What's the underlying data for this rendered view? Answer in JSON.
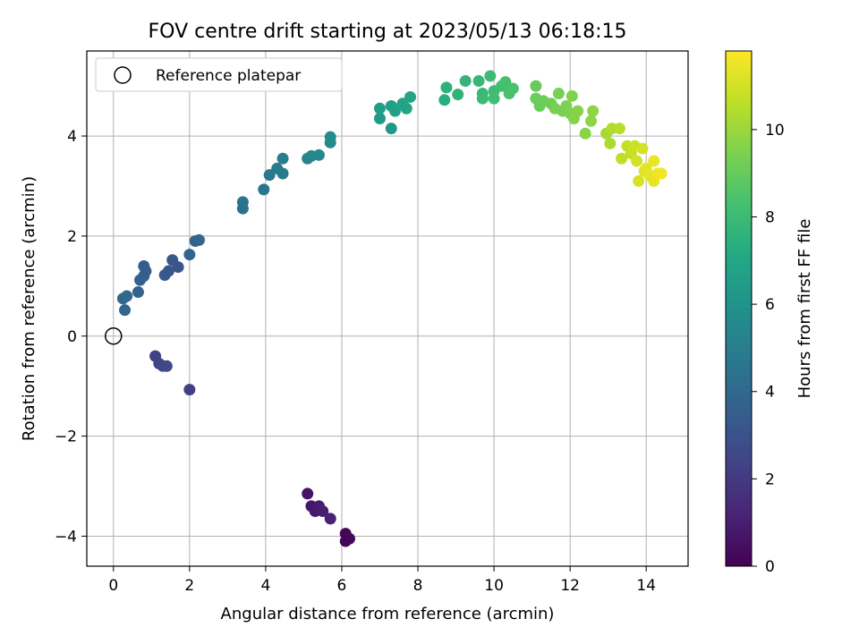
{
  "chart_data": {
    "type": "scatter",
    "title": "FOV centre drift starting at 2023/05/13 06:18:15",
    "xlabel": "Angular distance from reference (arcmin)",
    "ylabel": "Rotation from reference (arcmin)",
    "xlim": [
      -0.7,
      15.1
    ],
    "ylim": [
      -4.6,
      5.7
    ],
    "xticks": [
      0,
      2,
      4,
      6,
      8,
      10,
      12,
      14
    ],
    "yticks": [
      -4,
      -2,
      0,
      2,
      4
    ],
    "xtick_labels": [
      "0",
      "2",
      "4",
      "6",
      "8",
      "10",
      "12",
      "14"
    ],
    "ytick_labels": [
      "−4",
      "−2",
      "0",
      "2",
      "4"
    ],
    "grid": true,
    "legend": {
      "placement": "top-left",
      "entries": [
        "Reference platepar"
      ]
    },
    "reference_point": {
      "x": 0,
      "y": 0
    },
    "colorbar": {
      "label": "Hours from first FF file",
      "colormap": "viridis",
      "range": [
        0,
        11.8
      ],
      "ticks": [
        0,
        2,
        4,
        6,
        8,
        10
      ],
      "tick_labels": [
        "0",
        "2",
        "4",
        "6",
        "8",
        "10"
      ]
    },
    "points": [
      {
        "x": 5.1,
        "y": -3.15,
        "h": 0.6
      },
      {
        "x": 5.2,
        "y": -3.4,
        "h": 0.7
      },
      {
        "x": 5.3,
        "y": -3.5,
        "h": 0.8
      },
      {
        "x": 5.4,
        "y": -3.4,
        "h": 0.9
      },
      {
        "x": 5.5,
        "y": -3.5,
        "h": 1.0
      },
      {
        "x": 5.7,
        "y": -3.65,
        "h": 1.1
      },
      {
        "x": 6.1,
        "y": -3.95,
        "h": 0.2
      },
      {
        "x": 6.2,
        "y": -4.05,
        "h": 0.3
      },
      {
        "x": 6.1,
        "y": -4.1,
        "h": 0.1
      },
      {
        "x": 1.1,
        "y": -0.4,
        "h": 2.3
      },
      {
        "x": 1.2,
        "y": -0.55,
        "h": 2.4
      },
      {
        "x": 1.3,
        "y": -0.6,
        "h": 2.5
      },
      {
        "x": 1.4,
        "y": -0.6,
        "h": 2.6
      },
      {
        "x": 2.0,
        "y": -1.07,
        "h": 2.2
      },
      {
        "x": 0.25,
        "y": 0.75,
        "h": 3.9
      },
      {
        "x": 0.3,
        "y": 0.52,
        "h": 3.8
      },
      {
        "x": 0.35,
        "y": 0.8,
        "h": 3.95
      },
      {
        "x": 0.65,
        "y": 0.88,
        "h": 3.7
      },
      {
        "x": 0.7,
        "y": 1.12,
        "h": 3.6
      },
      {
        "x": 0.8,
        "y": 1.2,
        "h": 3.55
      },
      {
        "x": 0.8,
        "y": 1.4,
        "h": 3.5
      },
      {
        "x": 0.85,
        "y": 1.3,
        "h": 3.45
      },
      {
        "x": 1.35,
        "y": 1.22,
        "h": 3.3
      },
      {
        "x": 1.45,
        "y": 1.3,
        "h": 3.25
      },
      {
        "x": 1.55,
        "y": 1.52,
        "h": 3.2
      },
      {
        "x": 1.7,
        "y": 1.38,
        "h": 3.15
      },
      {
        "x": 2.0,
        "y": 1.63,
        "h": 3.8
      },
      {
        "x": 2.15,
        "y": 1.9,
        "h": 3.75
      },
      {
        "x": 2.25,
        "y": 1.92,
        "h": 3.85
      },
      {
        "x": 3.4,
        "y": 2.55,
        "h": 4.4
      },
      {
        "x": 3.4,
        "y": 2.68,
        "h": 4.5
      },
      {
        "x": 3.95,
        "y": 2.93,
        "h": 4.6
      },
      {
        "x": 4.1,
        "y": 3.22,
        "h": 4.7
      },
      {
        "x": 4.3,
        "y": 3.35,
        "h": 4.8
      },
      {
        "x": 4.45,
        "y": 3.25,
        "h": 4.9
      },
      {
        "x": 4.45,
        "y": 3.55,
        "h": 5.0
      },
      {
        "x": 5.1,
        "y": 3.55,
        "h": 5.3
      },
      {
        "x": 5.2,
        "y": 3.6,
        "h": 5.4
      },
      {
        "x": 5.4,
        "y": 3.62,
        "h": 5.5
      },
      {
        "x": 5.7,
        "y": 3.87,
        "h": 5.6
      },
      {
        "x": 5.7,
        "y": 3.98,
        "h": 5.7
      },
      {
        "x": 7.0,
        "y": 4.35,
        "h": 6.4
      },
      {
        "x": 7.0,
        "y": 4.55,
        "h": 6.5
      },
      {
        "x": 7.3,
        "y": 4.15,
        "h": 6.3
      },
      {
        "x": 7.3,
        "y": 4.6,
        "h": 6.6
      },
      {
        "x": 7.4,
        "y": 4.5,
        "h": 6.7
      },
      {
        "x": 7.6,
        "y": 4.65,
        "h": 6.8
      },
      {
        "x": 7.7,
        "y": 4.55,
        "h": 6.85
      },
      {
        "x": 7.8,
        "y": 4.78,
        "h": 6.9
      },
      {
        "x": 8.7,
        "y": 4.72,
        "h": 7.4
      },
      {
        "x": 8.75,
        "y": 4.97,
        "h": 7.5
      },
      {
        "x": 9.05,
        "y": 4.83,
        "h": 7.6
      },
      {
        "x": 9.25,
        "y": 5.1,
        "h": 7.7
      },
      {
        "x": 9.6,
        "y": 5.1,
        "h": 7.8
      },
      {
        "x": 9.7,
        "y": 4.85,
        "h": 7.9
      },
      {
        "x": 9.7,
        "y": 4.75,
        "h": 7.95
      },
      {
        "x": 9.9,
        "y": 5.2,
        "h": 8.0
      },
      {
        "x": 10.0,
        "y": 4.9,
        "h": 8.1
      },
      {
        "x": 10.0,
        "y": 4.75,
        "h": 8.15
      },
      {
        "x": 10.2,
        "y": 5.0,
        "h": 8.2
      },
      {
        "x": 10.3,
        "y": 5.08,
        "h": 8.3
      },
      {
        "x": 10.4,
        "y": 4.85,
        "h": 8.35
      },
      {
        "x": 10.5,
        "y": 4.95,
        "h": 8.4
      },
      {
        "x": 11.1,
        "y": 5.0,
        "h": 9.0
      },
      {
        "x": 11.1,
        "y": 4.75,
        "h": 9.1
      },
      {
        "x": 11.2,
        "y": 4.6,
        "h": 9.05
      },
      {
        "x": 11.3,
        "y": 4.7,
        "h": 9.15
      },
      {
        "x": 11.5,
        "y": 4.65,
        "h": 9.2
      },
      {
        "x": 11.6,
        "y": 4.55,
        "h": 9.3
      },
      {
        "x": 11.7,
        "y": 4.85,
        "h": 9.35
      },
      {
        "x": 11.8,
        "y": 4.5,
        "h": 9.4
      },
      {
        "x": 11.9,
        "y": 4.6,
        "h": 9.45
      },
      {
        "x": 12.0,
        "y": 4.45,
        "h": 9.5
      },
      {
        "x": 12.05,
        "y": 4.8,
        "h": 9.55
      },
      {
        "x": 12.1,
        "y": 4.35,
        "h": 9.6
      },
      {
        "x": 12.2,
        "y": 4.5,
        "h": 9.65
      },
      {
        "x": 12.4,
        "y": 4.05,
        "h": 9.7
      },
      {
        "x": 12.55,
        "y": 4.3,
        "h": 9.75
      },
      {
        "x": 12.6,
        "y": 4.5,
        "h": 9.8
      },
      {
        "x": 12.95,
        "y": 4.05,
        "h": 10.2
      },
      {
        "x": 13.05,
        "y": 3.85,
        "h": 10.3
      },
      {
        "x": 13.1,
        "y": 4.15,
        "h": 10.4
      },
      {
        "x": 13.3,
        "y": 4.15,
        "h": 10.5
      },
      {
        "x": 13.35,
        "y": 3.55,
        "h": 10.6
      },
      {
        "x": 13.5,
        "y": 3.8,
        "h": 10.7
      },
      {
        "x": 13.6,
        "y": 3.65,
        "h": 10.8
      },
      {
        "x": 13.7,
        "y": 3.8,
        "h": 10.9
      },
      {
        "x": 13.75,
        "y": 3.5,
        "h": 11.0
      },
      {
        "x": 13.8,
        "y": 3.1,
        "h": 11.1
      },
      {
        "x": 13.9,
        "y": 3.75,
        "h": 11.05
      },
      {
        "x": 13.95,
        "y": 3.3,
        "h": 11.2
      },
      {
        "x": 14.0,
        "y": 3.35,
        "h": 11.3
      },
      {
        "x": 14.1,
        "y": 3.2,
        "h": 11.35
      },
      {
        "x": 14.2,
        "y": 3.1,
        "h": 11.4
      },
      {
        "x": 14.2,
        "y": 3.5,
        "h": 11.45
      },
      {
        "x": 14.3,
        "y": 3.25,
        "h": 11.5
      },
      {
        "x": 14.4,
        "y": 3.25,
        "h": 11.6
      }
    ]
  }
}
